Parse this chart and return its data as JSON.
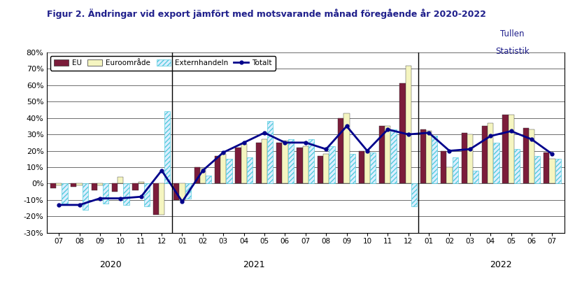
{
  "title": "Figur 2. Ändringar vid export jämfört med motsvarande månad föregående år 2020-2022",
  "watermark_line1": "Tullen",
  "watermark_line2": "Statistik",
  "labels": [
    "07",
    "08",
    "09",
    "10",
    "11",
    "12",
    "01",
    "02",
    "03",
    "04",
    "05",
    "06",
    "07",
    "08",
    "09",
    "10",
    "11",
    "12",
    "01",
    "02",
    "03",
    "04",
    "05",
    "06",
    "07"
  ],
  "year_info": [
    [
      2.5,
      "2020"
    ],
    [
      9.5,
      "2021"
    ],
    [
      21.5,
      "2022"
    ]
  ],
  "EU": [
    -3,
    -2,
    -4,
    -5,
    -4,
    -19,
    -10,
    10,
    17,
    22,
    25,
    25,
    22,
    17,
    40,
    20,
    35,
    61,
    33,
    20,
    31,
    35,
    42,
    34,
    19
  ],
  "Euroområde": [
    -1,
    -1,
    -1,
    4,
    1,
    -19,
    -10,
    9,
    18,
    24,
    27,
    26,
    23,
    18,
    43,
    20,
    35,
    72,
    32,
    10,
    30,
    37,
    42,
    33,
    15
  ],
  "Externhandeln": [
    -12,
    -16,
    -12,
    -13,
    -14,
    44,
    -9,
    5,
    15,
    16,
    38,
    27,
    27,
    23,
    18,
    19,
    33,
    -14,
    29,
    16,
    8,
    25,
    21,
    17,
    15
  ],
  "Totalt": [
    -13,
    -13,
    -9,
    -9,
    -8,
    8,
    -11,
    8,
    19,
    25,
    31,
    25,
    25,
    21,
    35,
    20,
    33,
    30,
    31,
    20,
    21,
    29,
    32,
    27,
    18
  ],
  "ylim": [
    -30,
    80
  ],
  "yticks": [
    -30,
    -20,
    -10,
    0,
    10,
    20,
    30,
    40,
    50,
    60,
    70,
    80
  ],
  "bar_width": 0.28,
  "EU_color": "#7B1C3A",
  "Euroområde_color": "#F5F5C0",
  "Externhandeln_hatch_color": "#55CCDD",
  "Externhandeln_bg_color": "#DDEEFF",
  "Totalt_color": "#00008B",
  "dividers": [
    5.5,
    17.5
  ],
  "title_color": "#1F1F8B",
  "watermark_color": "#1F1F8B",
  "background_color": "#FFFFFF"
}
